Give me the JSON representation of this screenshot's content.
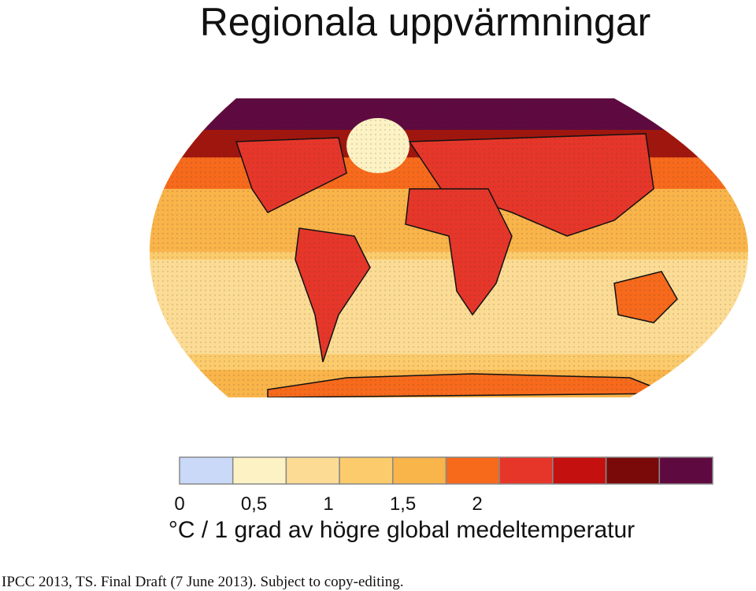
{
  "title": "Regionala uppvärmningar",
  "colorbar": {
    "colors": [
      "#c9d9f7",
      "#fdf2c4",
      "#fcdc94",
      "#fbcb6c",
      "#f9b44a",
      "#f76a1c",
      "#e6362a",
      "#c4100e",
      "#7a0a0a",
      "#5e0a40"
    ],
    "ticks": [
      0,
      {
        "value": 0.5,
        "label": "0,5"
      },
      1,
      {
        "value": 1.5,
        "label": "1,5"
      },
      2
    ],
    "label": "°C / 1 grad av högre global medeltemperatur"
  },
  "source": "IPCC 2013, TS. Final Draft (7 June 2013). Subject to copy-editing."
}
